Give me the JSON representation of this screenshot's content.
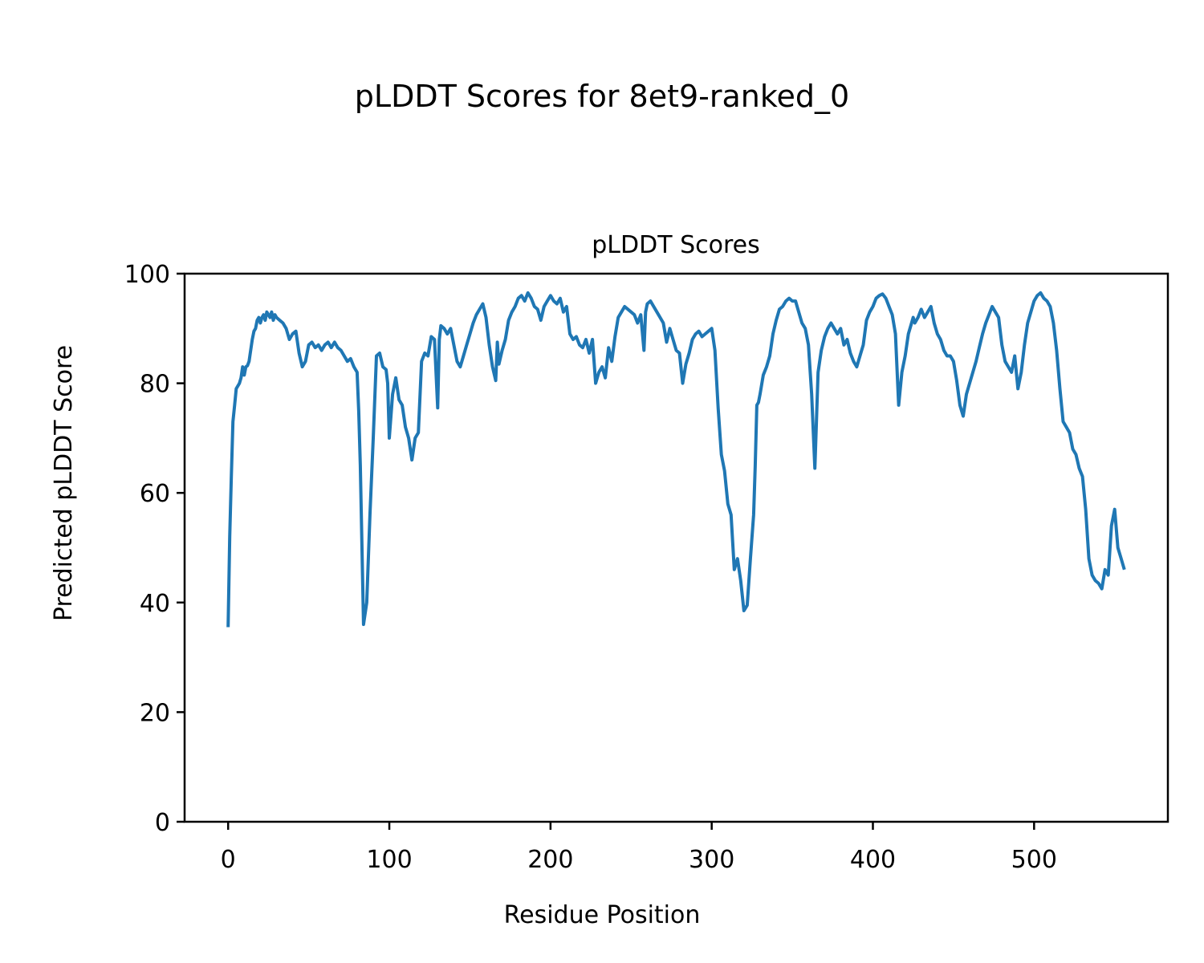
{
  "figure": {
    "suptitle": "pLDDT Scores for 8et9-ranked_0"
  },
  "chart_data": {
    "type": "line",
    "title": "pLDDT Scores",
    "xlabel": "Residue Position",
    "ylabel": "Predicted pLDDT Score",
    "xlim": [
      -27,
      583
    ],
    "ylim": [
      0,
      100
    ],
    "xticks": [
      0,
      100,
      200,
      300,
      400,
      500
    ],
    "yticks": [
      0,
      20,
      40,
      60,
      80,
      100
    ],
    "grid": false,
    "color": "#1f77b4",
    "series": [
      {
        "x": [
          0,
          1,
          2,
          3,
          4,
          5,
          6,
          7,
          8,
          9,
          10,
          11,
          12,
          13,
          14,
          15,
          16,
          17,
          18,
          19,
          20,
          21,
          22,
          23,
          24,
          25,
          26,
          27,
          28,
          29,
          30,
          32,
          34,
          36,
          38,
          40,
          42,
          44,
          46,
          48,
          50,
          52,
          54,
          56,
          58,
          60,
          62,
          64,
          66,
          68,
          70,
          72,
          74,
          76,
          78,
          80,
          81,
          82,
          84,
          86,
          88,
          90,
          92,
          94,
          96,
          98,
          99,
          100,
          102,
          104,
          106,
          108,
          110,
          112,
          114,
          116,
          118,
          120,
          122,
          124,
          126,
          128,
          130,
          131,
          132,
          134,
          136,
          138,
          140,
          142,
          144,
          146,
          148,
          150,
          152,
          154,
          156,
          158,
          160,
          162,
          164,
          166,
          167,
          168,
          170,
          172,
          174,
          176,
          178,
          180,
          182,
          184,
          186,
          188,
          190,
          192,
          194,
          196,
          198,
          200,
          202,
          204,
          206,
          208,
          210,
          212,
          214,
          216,
          218,
          220,
          222,
          224,
          226,
          228,
          230,
          232,
          234,
          236,
          238,
          240,
          242,
          244,
          246,
          248,
          250,
          252,
          254,
          256,
          258,
          259,
          260,
          262,
          264,
          266,
          268,
          270,
          272,
          274,
          276,
          278,
          280,
          282,
          284,
          286,
          288,
          290,
          292,
          294,
          296,
          298,
          300,
          302,
          304,
          306,
          308,
          310,
          312,
          314,
          316,
          318,
          320,
          322,
          324,
          326,
          327,
          328,
          329,
          330,
          332,
          334,
          336,
          338,
          340,
          342,
          344,
          346,
          348,
          350,
          352,
          354,
          356,
          358,
          360,
          362,
          364,
          366,
          368,
          370,
          372,
          374,
          376,
          378,
          380,
          382,
          384,
          386,
          388,
          390,
          392,
          394,
          396,
          398,
          400,
          402,
          404,
          406,
          408,
          410,
          412,
          414,
          416,
          418,
          420,
          422,
          424,
          425,
          426,
          428,
          430,
          432,
          434,
          436,
          438,
          440,
          442,
          444,
          446,
          448,
          450,
          452,
          454,
          456,
          458,
          460,
          462,
          464,
          466,
          468,
          470,
          472,
          474,
          476,
          478,
          480,
          482,
          484,
          486,
          488,
          490,
          492,
          494,
          496,
          498,
          500,
          502,
          504,
          506,
          508,
          510,
          512,
          514,
          516,
          518,
          520,
          522,
          524,
          526,
          528,
          530,
          532,
          534,
          536,
          538,
          540,
          542,
          544,
          546,
          548,
          550,
          552,
          554,
          556
        ],
        "y": [
          35.5,
          52,
          63,
          73,
          76,
          79,
          79.5,
          80,
          81,
          83,
          81.5,
          83,
          83.2,
          84,
          86,
          88,
          89.5,
          90,
          91.5,
          92,
          91,
          92,
          92.5,
          91.5,
          93,
          92.5,
          92,
          93,
          91.5,
          92.5,
          92,
          91.5,
          91,
          90,
          88,
          89,
          89.5,
          85.5,
          83,
          84,
          87,
          87.5,
          86.5,
          87,
          86,
          87,
          87.5,
          86.5,
          87.5,
          86.5,
          86,
          85,
          84,
          84.5,
          83,
          82,
          75,
          65,
          36,
          40,
          56,
          70,
          85,
          85.5,
          83,
          82.5,
          80,
          70,
          78,
          81,
          77,
          76,
          72,
          70,
          66,
          70,
          71,
          84,
          85.5,
          85,
          88.5,
          88,
          75.5,
          88,
          90.5,
          90,
          89,
          90,
          87,
          84,
          83,
          85,
          87,
          89,
          91,
          92.5,
          93.5,
          94.5,
          92,
          87,
          83,
          80.5,
          87.5,
          83.5,
          86,
          88,
          91.5,
          93,
          94,
          95.5,
          96,
          95,
          96.5,
          95.5,
          94,
          93.5,
          91.5,
          94,
          95,
          96,
          95,
          94.5,
          95.5,
          93,
          94,
          89,
          88,
          88.5,
          87,
          86.5,
          88,
          85.5,
          88,
          80,
          82,
          83,
          81,
          86.5,
          84,
          88.5,
          92,
          93,
          94,
          93.5,
          93,
          92.5,
          91,
          92.5,
          86,
          93,
          94.5,
          95,
          94,
          93,
          92,
          91,
          87.5,
          90,
          88,
          86,
          85.5,
          80,
          83.5,
          85.5,
          88,
          89,
          89.5,
          88.5,
          89,
          89.5,
          90,
          86,
          75.5,
          67,
          64,
          58,
          56,
          46,
          48,
          44,
          38.5,
          39.5,
          48,
          56,
          65,
          76,
          76.5,
          78,
          81.5,
          83,
          85,
          89,
          91.5,
          93.5,
          94,
          95,
          95.5,
          95,
          95,
          93,
          91,
          90,
          87,
          78,
          64.5,
          82,
          86,
          88.5,
          90,
          91,
          90,
          89,
          90,
          87,
          88,
          85.5,
          84,
          83,
          85,
          87,
          91.5,
          93,
          94,
          95.5,
          96,
          96.3,
          95.5,
          94,
          92.5,
          89,
          76,
          82,
          85,
          89,
          91,
          92,
          91,
          92,
          93.5,
          92,
          93,
          94,
          91,
          89,
          88,
          86,
          85,
          85,
          84,
          80.5,
          76,
          74,
          78,
          80,
          82,
          84,
          86.5,
          89,
          91,
          92.5,
          94,
          93,
          92,
          87,
          84,
          83,
          82,
          85,
          79,
          82,
          87,
          91,
          93,
          95,
          96,
          96.5,
          95.5,
          95,
          94,
          91,
          86,
          79,
          73,
          72,
          71,
          68,
          67,
          64.5,
          63,
          57,
          48,
          45,
          44,
          43.5,
          42.5,
          46,
          45,
          54,
          57,
          50,
          48,
          46
        ]
      }
    ]
  }
}
